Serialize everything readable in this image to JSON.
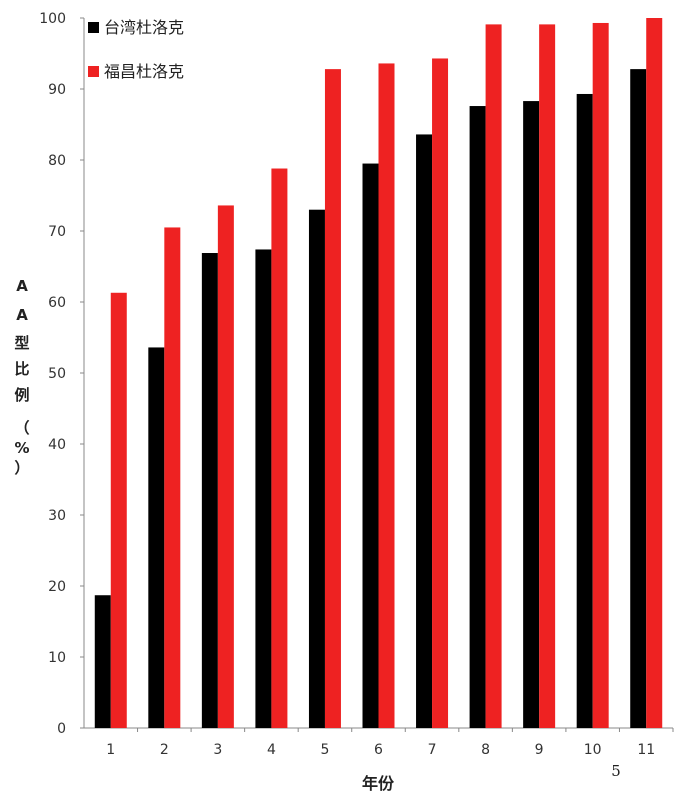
{
  "chart_data": {
    "type": "bar",
    "categories": [
      "1",
      "2",
      "3",
      "4",
      "5",
      "6",
      "7",
      "8",
      "9",
      "10",
      "11"
    ],
    "series": [
      {
        "name": "台湾杜洛克",
        "color": "#000000",
        "values": [
          18.7,
          53.6,
          66.9,
          67.4,
          73.0,
          79.5,
          83.6,
          87.6,
          88.3,
          89.3,
          92.8
        ]
      },
      {
        "name": "福昌杜洛克",
        "color": "#ee2222",
        "values": [
          61.3,
          70.5,
          73.6,
          78.8,
          92.8,
          93.6,
          94.3,
          99.1,
          99.1,
          99.3,
          100.0
        ]
      }
    ],
    "ylim": [
      0,
      100
    ],
    "yticks": [
      "0",
      "10",
      "20",
      "30",
      "40",
      "50",
      "60",
      "70",
      "80",
      "90",
      "100"
    ],
    "ylabel_chars": [
      "A",
      "A",
      "型",
      "比",
      "例",
      "（",
      "%",
      "）"
    ],
    "xlabel": "年份",
    "grid": false,
    "legend_position": "top-left"
  },
  "page_number": "5"
}
